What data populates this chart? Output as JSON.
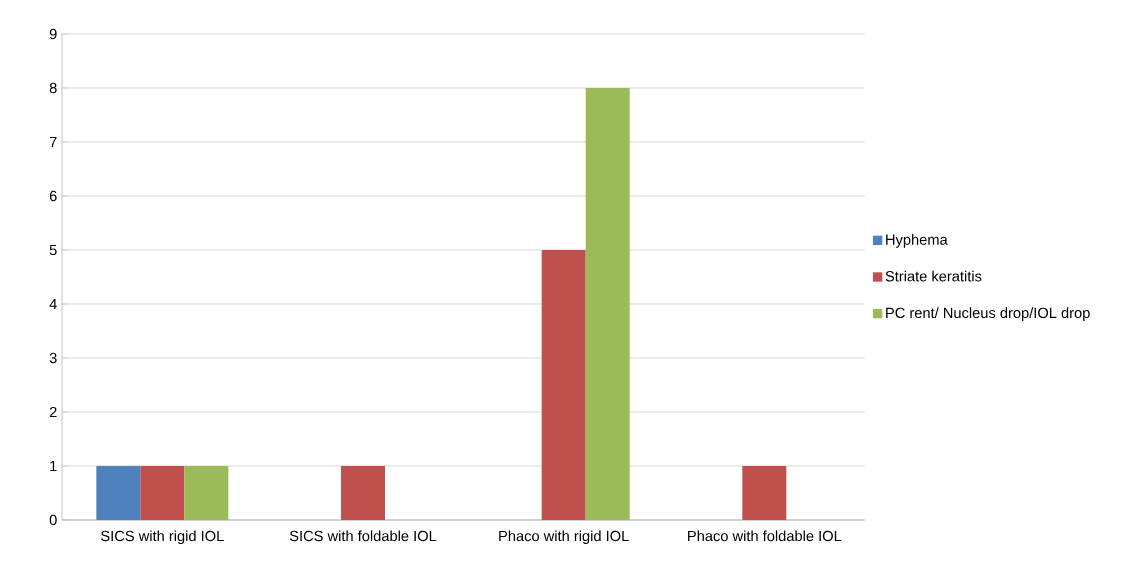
{
  "chart_data": {
    "type": "bar",
    "categories": [
      "SICS with rigid IOL",
      "SICS with foldable IOL",
      "Phaco with rigid IOL",
      "Phaco with foldable IOL"
    ],
    "series": [
      {
        "name": "Hyphema",
        "color": "#4f81bd",
        "values": [
          1,
          0,
          0,
          0
        ]
      },
      {
        "name": "Striate keratitis",
        "color": "#c0504d",
        "values": [
          1,
          1,
          5,
          1
        ]
      },
      {
        "name": "PC rent/ Nucleus drop/IOL drop",
        "color": "#9bbb59",
        "values": [
          1,
          0,
          8,
          0
        ]
      }
    ],
    "ylim": [
      0,
      9
    ],
    "yticks": [
      0,
      1,
      2,
      3,
      4,
      5,
      6,
      7,
      8,
      9
    ],
    "grid": "y",
    "legend": "right"
  }
}
